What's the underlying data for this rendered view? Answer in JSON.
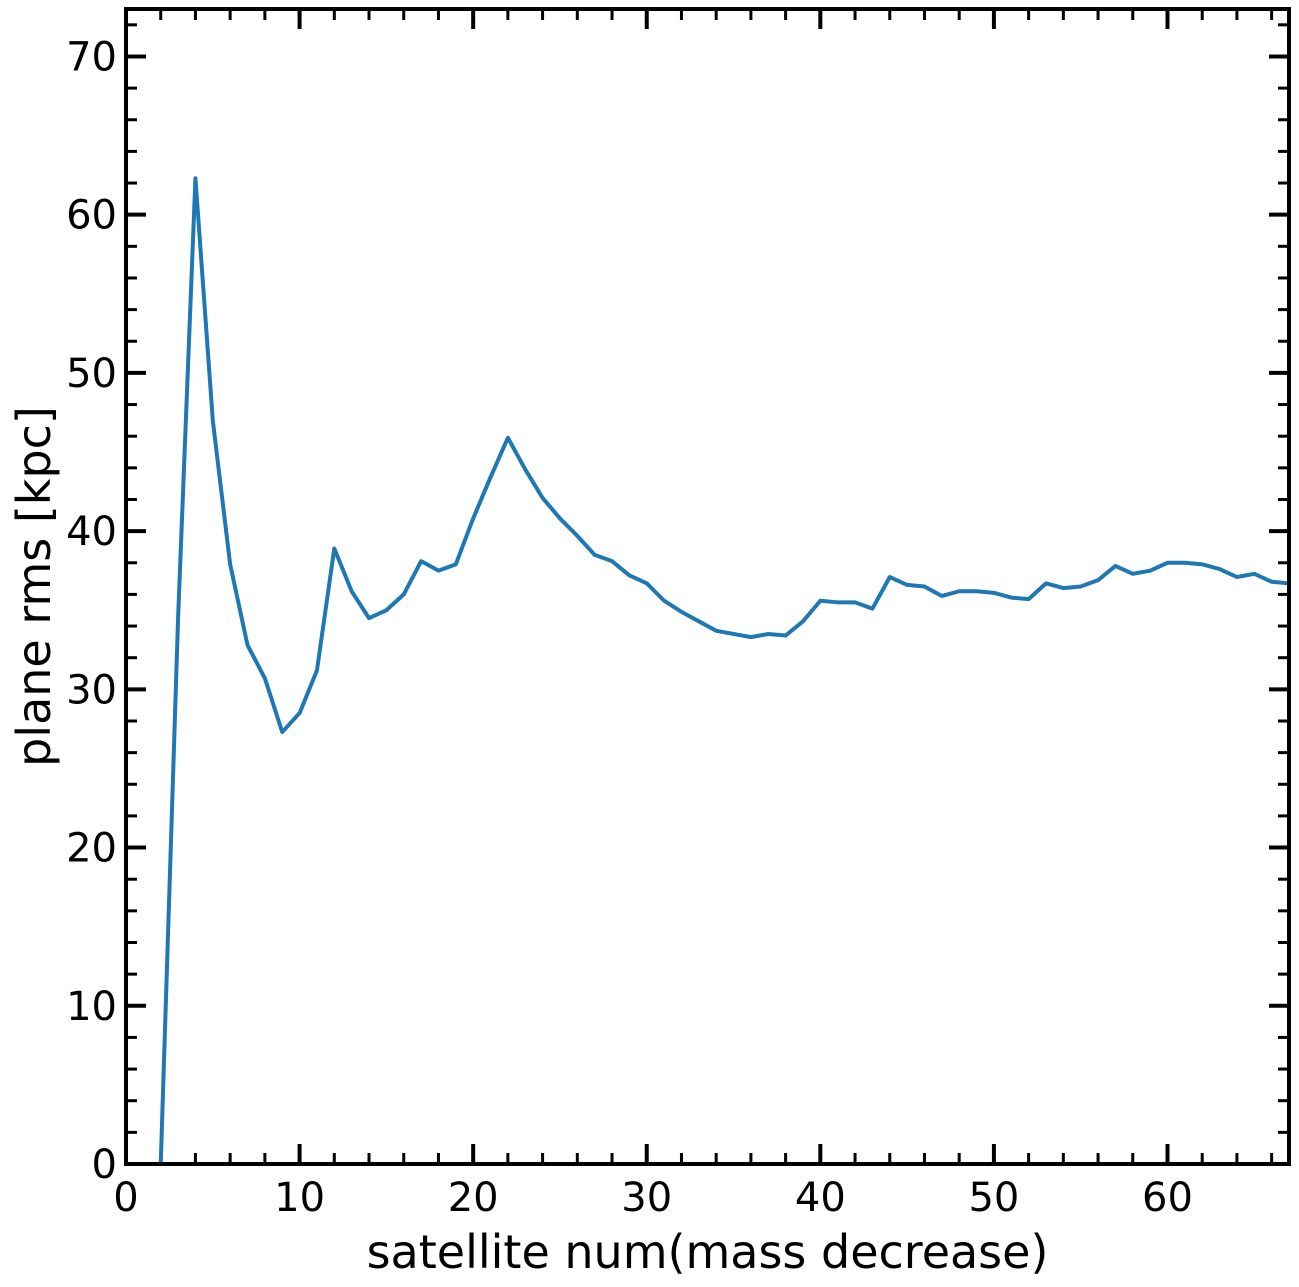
{
  "chart_data": {
    "type": "line",
    "title": "",
    "xlabel": "satellite num(mass decrease)",
    "ylabel": "plane rms [kpc]",
    "xlim": [
      0,
      67
    ],
    "ylim": [
      0,
      73
    ],
    "xticks": [
      0,
      10,
      20,
      30,
      40,
      50,
      60
    ],
    "yticks": [
      0,
      10,
      20,
      30,
      40,
      50,
      60,
      70
    ],
    "xtick_labels": [
      "0",
      "10",
      "20",
      "30",
      "40",
      "50",
      "60"
    ],
    "ytick_labels": [
      "0",
      "10",
      "20",
      "30",
      "40",
      "50",
      "60",
      "70"
    ],
    "grid": false,
    "line_color": "#1f77b4",
    "series": [
      {
        "x": [
          2,
          3,
          4,
          5,
          6,
          7,
          8,
          9,
          10,
          11,
          12,
          13,
          14,
          15,
          16,
          17,
          18,
          19,
          20,
          21,
          22,
          23,
          24,
          25,
          26,
          27,
          28,
          29,
          30,
          31,
          32,
          33,
          34,
          35,
          36,
          37,
          38,
          39,
          40,
          41,
          42,
          43,
          44,
          45,
          46,
          47,
          48,
          49,
          50,
          51,
          52,
          53,
          54,
          55,
          56,
          57,
          58,
          59,
          60,
          61,
          62,
          63,
          64,
          65,
          66,
          67
        ],
        "values": [
          0.0,
          34.5,
          62.3,
          47.0,
          37.9,
          32.8,
          30.7,
          27.3,
          28.5,
          31.2,
          38.9,
          36.2,
          34.5,
          35.0,
          36.0,
          38.1,
          37.5,
          37.9,
          40.8,
          43.4,
          45.9,
          43.9,
          42.1,
          40.8,
          39.7,
          38.5,
          38.1,
          37.2,
          36.7,
          35.6,
          34.9,
          34.3,
          33.7,
          33.5,
          33.3,
          33.5,
          33.4,
          34.3,
          35.6,
          35.5,
          35.5,
          35.1,
          37.1,
          36.6,
          36.5,
          35.9,
          36.2,
          36.2,
          36.1,
          35.8,
          35.7,
          36.7,
          36.4,
          36.5,
          36.9,
          37.8,
          37.3,
          37.5,
          38.0,
          38.0,
          37.9,
          37.6,
          37.1,
          37.3,
          36.8,
          36.7
        ]
      }
    ]
  }
}
